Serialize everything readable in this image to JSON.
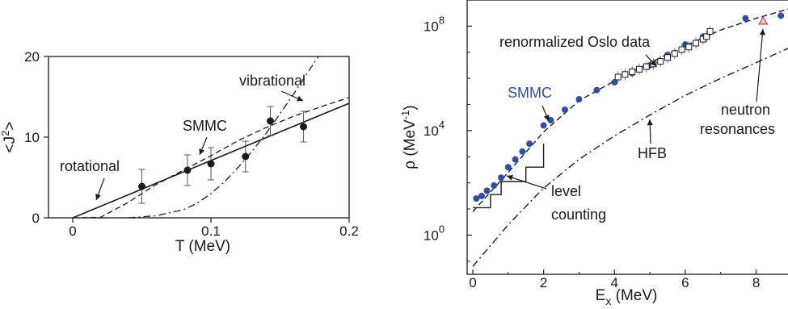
{
  "chart_data": [
    {
      "type": "line",
      "ylabel_base": "<J",
      "ylabel_sup": "2",
      "ylabel_end": ">",
      "xlabel": "T (MeV)",
      "xlim": [
        0,
        0.2
      ],
      "ylim": [
        0,
        20
      ],
      "x_ticks": [
        0,
        0.1,
        0.2
      ],
      "x_tick_labels": [
        "0",
        "0.1",
        "0.2"
      ],
      "y_ticks": [
        0,
        10,
        20
      ],
      "y_tick_labels": [
        "0",
        "10",
        "20"
      ],
      "grid": false,
      "annotations": {
        "rotational": "rotational",
        "smmc": "SMMC",
        "vibrational": "vibrational"
      },
      "series": [
        {
          "style": "markers-errorbars",
          "points": [
            {
              "x": 0.05,
              "y": 3.9,
              "err": 2.1
            },
            {
              "x": 0.083,
              "y": 5.9,
              "err": 1.9
            },
            {
              "x": 0.1,
              "y": 6.7,
              "err": 2.0
            },
            {
              "x": 0.125,
              "y": 7.6,
              "err": 1.9
            },
            {
              "x": 0.143,
              "y": 12.0,
              "err": 1.8
            },
            {
              "x": 0.167,
              "y": 11.3,
              "err": 1.9
            }
          ]
        },
        {
          "style": "solid",
          "points": [
            [
              0,
              0
            ],
            [
              0.2,
              14.2
            ]
          ]
        },
        {
          "style": "dashed",
          "points": [
            [
              0.0,
              0
            ],
            [
              0.02,
              0.05
            ],
            [
              0.04,
              1.9
            ],
            [
              0.06,
              4.1
            ],
            [
              0.08,
              5.9
            ],
            [
              0.1,
              7.7
            ],
            [
              0.12,
              9.6
            ],
            [
              0.14,
              11.2
            ],
            [
              0.16,
              12.6
            ],
            [
              0.18,
              13.8
            ],
            [
              0.2,
              14.9
            ]
          ]
        },
        {
          "style": "dash-dot",
          "points": [
            [
              0.04,
              0.0
            ],
            [
              0.06,
              0.25
            ],
            [
              0.08,
              1.0
            ],
            [
              0.09,
              1.8
            ],
            [
              0.1,
              3.0
            ],
            [
              0.11,
              4.5
            ],
            [
              0.12,
              6.3
            ],
            [
              0.13,
              8.3
            ],
            [
              0.14,
              10.5
            ],
            [
              0.15,
              12.9
            ],
            [
              0.16,
              15.4
            ],
            [
              0.17,
              18.0
            ],
            [
              0.18,
              20.6
            ],
            [
              0.2,
              26.0
            ]
          ]
        }
      ]
    },
    {
      "type": "line",
      "ylabel_base": "ρ (MeV",
      "ylabel_sup": "-1",
      "ylabel_end": ")",
      "xlabel_base": "E",
      "xlabel_sub": "x",
      "xlabel_end": " (MeV)",
      "xlim": [
        0,
        8.9
      ],
      "ylim_log10": [
        -1.5,
        9
      ],
      "yscale": "log",
      "x_ticks": [
        0,
        2,
        4,
        6,
        8
      ],
      "x_tick_labels": [
        "0",
        "2",
        "4",
        "6",
        "8"
      ],
      "y_ticks_log10": [
        0,
        4,
        8
      ],
      "y_tick_base": "10",
      "y_tick_exps": [
        "0",
        "4",
        "8"
      ],
      "grid": false,
      "annotations": {
        "oslo": "renormalized Oslo data",
        "smmc": "SMMC",
        "neutron1": "neutron",
        "neutron2": "resonances",
        "hfb": "HFB",
        "level1": "level",
        "level2": "counting"
      },
      "colors": {
        "smmc": "#2e4fa8",
        "neutron": "#e03030"
      },
      "series": [
        {
          "name": "SMMC",
          "style": "blue-dots",
          "points_log10": [
            [
              0.1,
              1.4
            ],
            [
              0.25,
              1.5
            ],
            [
              0.4,
              1.7
            ],
            [
              0.6,
              1.9
            ],
            [
              0.8,
              2.2
            ],
            [
              1.0,
              2.6
            ],
            [
              1.2,
              2.9
            ],
            [
              1.4,
              3.2
            ],
            [
              1.6,
              3.5
            ],
            [
              2.0,
              4.2
            ],
            [
              2.2,
              4.4
            ],
            [
              2.6,
              4.8
            ],
            [
              3.0,
              5.2
            ],
            [
              3.5,
              5.55
            ],
            [
              4.0,
              5.85
            ],
            [
              4.5,
              6.2
            ],
            [
              5.0,
              6.5
            ],
            [
              5.5,
              6.9
            ],
            [
              6.0,
              7.3
            ],
            [
              6.5,
              7.6
            ],
            [
              7.7,
              8.3
            ],
            [
              8.7,
              8.4
            ]
          ]
        },
        {
          "name": "renormalized Oslo data",
          "style": "open-squares",
          "points_log10": [
            [
              4.1,
              6.05
            ],
            [
              4.3,
              6.15
            ],
            [
              4.5,
              6.25
            ],
            [
              4.7,
              6.35
            ],
            [
              4.9,
              6.45
            ],
            [
              5.1,
              6.55
            ],
            [
              5.3,
              6.65
            ],
            [
              5.5,
              6.8
            ],
            [
              5.7,
              6.95
            ],
            [
              5.9,
              7.1
            ],
            [
              6.1,
              7.2
            ],
            [
              6.3,
              7.35
            ],
            [
              6.5,
              7.5
            ],
            [
              6.6,
              7.6
            ],
            [
              6.7,
              7.8
            ]
          ]
        },
        {
          "name": "neutron resonances",
          "style": "red-triangle",
          "points_log10": [
            [
              8.2,
              8.2
            ]
          ]
        },
        {
          "name": "level counting",
          "style": "step",
          "points_log10": [
            [
              0.0,
              1.05
            ],
            [
              0.5,
              1.05
            ],
            [
              0.5,
              1.55
            ],
            [
              0.8,
              1.55
            ],
            [
              0.8,
              2.05
            ],
            [
              1.5,
              2.05
            ],
            [
              1.5,
              2.6
            ],
            [
              2.0,
              2.6
            ],
            [
              2.0,
              3.5
            ]
          ]
        },
        {
          "name": "dashed",
          "style": "dashed",
          "points_log10": [
            [
              0.0,
              0.9
            ],
            [
              1.0,
              2.4
            ],
            [
              2.0,
              3.95
            ],
            [
              3.0,
              5.15
            ],
            [
              4.0,
              5.9
            ],
            [
              5.0,
              6.6
            ],
            [
              6.0,
              7.25
            ],
            [
              7.0,
              7.85
            ],
            [
              8.0,
              8.3
            ],
            [
              8.9,
              8.65
            ]
          ]
        },
        {
          "name": "HFB",
          "style": "dash-dot",
          "points_log10": [
            [
              0.0,
              -1.2
            ],
            [
              0.5,
              -0.4
            ],
            [
              1.0,
              0.4
            ],
            [
              1.5,
              1.1
            ],
            [
              2.0,
              1.8
            ],
            [
              3.0,
              2.9
            ],
            [
              4.0,
              3.8
            ],
            [
              5.0,
              4.6
            ],
            [
              6.0,
              5.35
            ],
            [
              7.0,
              6.0
            ],
            [
              8.0,
              6.6
            ],
            [
              8.9,
              7.15
            ]
          ]
        }
      ]
    }
  ]
}
